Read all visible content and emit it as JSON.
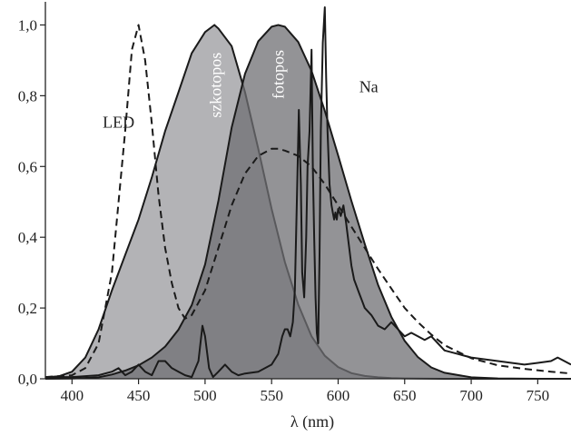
{
  "chart_data": {
    "type": "line",
    "title": "",
    "xlabel": "λ (nm)",
    "ylabel": "",
    "xlim": [
      380,
      775
    ],
    "ylim": [
      0,
      1.05
    ],
    "grid": false,
    "x_ticks": [
      400,
      450,
      500,
      550,
      600,
      650,
      700,
      750
    ],
    "x_tick_labels": [
      "400",
      "450",
      "500",
      "550",
      "600",
      "650",
      "700",
      "750"
    ],
    "y_ticks": [
      0,
      0.2,
      0.4,
      0.6,
      0.8,
      1.0
    ],
    "y_tick_labels": [
      "0,0",
      "0,2",
      "0,4",
      "0,6",
      "0,8",
      "1,0"
    ],
    "series": [
      {
        "name": "szkotopos",
        "style": "filled",
        "fill": "#9a9a9e",
        "x": [
          380,
          390,
          400,
          410,
          420,
          430,
          440,
          450,
          460,
          470,
          480,
          490,
          500,
          507,
          510,
          520,
          530,
          540,
          550,
          560,
          570,
          580,
          590,
          600,
          610,
          620,
          630,
          640,
          650,
          660,
          680,
          700,
          720,
          750,
          775
        ],
        "y": [
          0.004,
          0.007,
          0.02,
          0.06,
          0.14,
          0.25,
          0.35,
          0.45,
          0.57,
          0.7,
          0.81,
          0.92,
          0.98,
          1.0,
          0.99,
          0.94,
          0.81,
          0.65,
          0.48,
          0.33,
          0.21,
          0.12,
          0.065,
          0.033,
          0.016,
          0.008,
          0.004,
          0.002,
          0.001,
          0.0005,
          0.0001,
          0.0,
          0.0,
          0.0,
          0.0
        ]
      },
      {
        "name": "fotopos",
        "style": "filled",
        "fill": "#6f6f73",
        "x": [
          380,
          400,
          420,
          430,
          440,
          450,
          460,
          470,
          480,
          490,
          500,
          510,
          520,
          530,
          540,
          550,
          555,
          560,
          570,
          580,
          590,
          600,
          610,
          620,
          630,
          640,
          650,
          660,
          670,
          680,
          700,
          720,
          750,
          775
        ],
        "y": [
          0.0,
          0.0004,
          0.004,
          0.012,
          0.023,
          0.038,
          0.06,
          0.091,
          0.139,
          0.208,
          0.323,
          0.503,
          0.71,
          0.862,
          0.954,
          0.995,
          1.0,
          0.995,
          0.952,
          0.87,
          0.757,
          0.631,
          0.503,
          0.381,
          0.265,
          0.175,
          0.107,
          0.061,
          0.032,
          0.017,
          0.0041,
          0.001,
          0.0001,
          0.0
        ]
      },
      {
        "name": "LED",
        "style": "dashed",
        "x": [
          380,
          400,
          410,
          420,
          430,
          440,
          445,
          450,
          455,
          460,
          465,
          470,
          475,
          480,
          485,
          490,
          500,
          510,
          520,
          530,
          540,
          550,
          555,
          560,
          570,
          580,
          590,
          600,
          610,
          620,
          630,
          640,
          650,
          660,
          670,
          680,
          700,
          720,
          740,
          760,
          775
        ],
        "y": [
          0.005,
          0.01,
          0.03,
          0.1,
          0.3,
          0.7,
          0.93,
          1.0,
          0.9,
          0.72,
          0.52,
          0.37,
          0.27,
          0.2,
          0.17,
          0.18,
          0.25,
          0.37,
          0.49,
          0.58,
          0.63,
          0.65,
          0.65,
          0.645,
          0.63,
          0.6,
          0.55,
          0.49,
          0.43,
          0.37,
          0.31,
          0.255,
          0.2,
          0.16,
          0.125,
          0.095,
          0.058,
          0.038,
          0.028,
          0.02,
          0.015
        ]
      },
      {
        "name": "Na",
        "style": "solid",
        "x": [
          380,
          400,
          420,
          430,
          435,
          440,
          445,
          450,
          455,
          460,
          465,
          470,
          475,
          480,
          485,
          490,
          495,
          498,
          500,
          503,
          506,
          510,
          515,
          520,
          525,
          530,
          540,
          550,
          555,
          558,
          560,
          562,
          564,
          566,
          567.5,
          569,
          570.5,
          572,
          573,
          574.5,
          576,
          577,
          578.5,
          580,
          581,
          582,
          583,
          584,
          585,
          586,
          587,
          588.5,
          590,
          591,
          592,
          593.5,
          595,
          596,
          597,
          598,
          599,
          600,
          602,
          604,
          606,
          608,
          610,
          612,
          614,
          616,
          618,
          620,
          625,
          630,
          635,
          640,
          645,
          650,
          655,
          660,
          665,
          670,
          675,
          680,
          690,
          700,
          720,
          740,
          750,
          760,
          765,
          770,
          775
        ],
        "y": [
          0.005,
          0.005,
          0.01,
          0.02,
          0.03,
          0.01,
          0.02,
          0.04,
          0.02,
          0.01,
          0.05,
          0.05,
          0.03,
          0.02,
          0.01,
          0.005,
          0.05,
          0.15,
          0.12,
          0.03,
          0.005,
          0.02,
          0.04,
          0.02,
          0.01,
          0.015,
          0.02,
          0.04,
          0.07,
          0.12,
          0.14,
          0.14,
          0.12,
          0.16,
          0.25,
          0.5,
          0.76,
          0.55,
          0.3,
          0.23,
          0.4,
          0.6,
          0.7,
          0.93,
          0.6,
          0.4,
          0.23,
          0.13,
          0.1,
          0.35,
          0.7,
          0.95,
          1.05,
          0.85,
          0.7,
          0.55,
          0.49,
          0.47,
          0.45,
          0.47,
          0.45,
          0.48,
          0.46,
          0.49,
          0.44,
          0.38,
          0.32,
          0.28,
          0.26,
          0.24,
          0.22,
          0.2,
          0.18,
          0.15,
          0.14,
          0.16,
          0.14,
          0.12,
          0.13,
          0.12,
          0.11,
          0.12,
          0.1,
          0.08,
          0.07,
          0.06,
          0.05,
          0.04,
          0.045,
          0.05,
          0.06,
          0.05,
          0.04
        ]
      }
    ],
    "annotations": [
      {
        "text": "LED",
        "x": 435,
        "y": 0.71,
        "rotate": false,
        "color": "#222222"
      },
      {
        "text": "szkotopos",
        "x": 508,
        "y": 0.83,
        "rotate": true,
        "color": "#ffffff"
      },
      {
        "text": "fotopos",
        "x": 555,
        "y": 0.86,
        "rotate": true,
        "color": "#ffffff"
      },
      {
        "text": "Na",
        "x": 623,
        "y": 0.81,
        "rotate": false,
        "color": "#222222"
      }
    ]
  }
}
